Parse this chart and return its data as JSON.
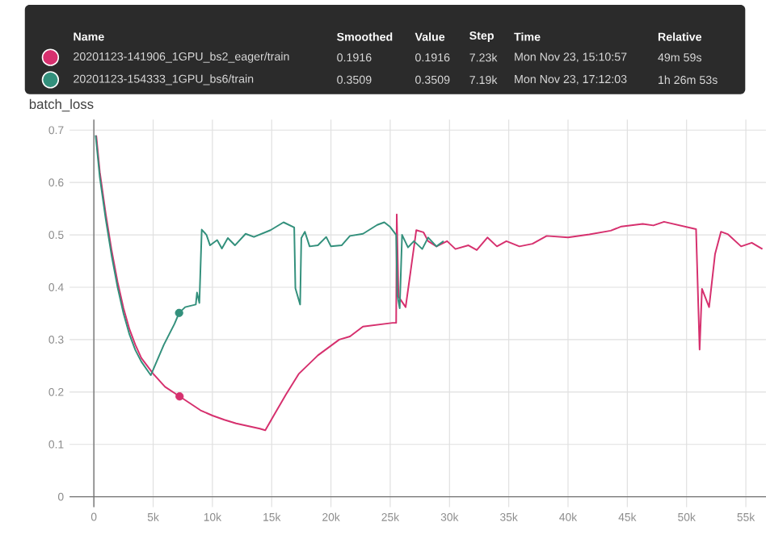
{
  "chart_data": {
    "type": "line",
    "title": "batch_loss",
    "legend": "top",
    "grid": true,
    "marker": "none",
    "xlim": [
      -2050,
      56700
    ],
    "ylim": [
      -0.02,
      0.72
    ],
    "xticks": [
      0,
      {
        "value": 5000,
        "label": "5k"
      },
      {
        "value": 10000,
        "label": "10k"
      },
      {
        "value": 15000,
        "label": "15k"
      },
      {
        "value": 20000,
        "label": "20k"
      },
      {
        "value": 25000,
        "label": "25k"
      },
      {
        "value": 30000,
        "label": "30k"
      },
      {
        "value": 35000,
        "label": "35k"
      },
      {
        "value": 40000,
        "label": "40k"
      },
      {
        "value": 45000,
        "label": "45k"
      },
      {
        "value": 50000,
        "label": "50k"
      },
      {
        "value": 55000,
        "label": "55k"
      }
    ],
    "yticks": [
      0,
      0.1,
      0.2,
      0.3,
      0.4,
      0.5,
      0.6,
      0.7
    ],
    "annotations": [
      "Name",
      "Smoothed",
      "Value",
      "Step",
      "Time",
      "Relative",
      "0.1916",
      "0.1916",
      "7.23k",
      "Mon Nov 23, 15:10:57",
      "49m 59s",
      "0.3509",
      "0.3509",
      "7.19k",
      "Mon Nov 23, 17:12:03",
      "1h 26m 53s"
    ],
    "series": [
      {
        "name": "20201123-141906_1GPU_bs2_eager/train",
        "color": "#d6306e",
        "x": [
          200,
          500,
          1000,
          1500,
          2000,
          2500,
          3000,
          3500,
          4000,
          5000,
          6000,
          7230,
          8000,
          9000,
          10000,
          11000,
          12000,
          13000,
          14000,
          14460,
          15300,
          16200,
          17300,
          18900,
          20700,
          21600,
          22700,
          25200,
          25500,
          25550,
          25700,
          26300,
          27200,
          27800,
          28200,
          28900,
          29800,
          30500,
          31600,
          32300,
          33200,
          34000,
          34800,
          35900,
          37000,
          38200,
          40000,
          41800,
          43600,
          44500,
          46300,
          47200,
          48100,
          50800,
          51100,
          51300,
          51900,
          52400,
          52900,
          53500,
          54600,
          55500,
          56400
        ],
        "values": [
          0.69,
          0.62,
          0.54,
          0.47,
          0.41,
          0.36,
          0.32,
          0.29,
          0.265,
          0.235,
          0.21,
          0.1916,
          0.18,
          0.165,
          0.155,
          0.147,
          0.14,
          0.135,
          0.13,
          0.127,
          0.16,
          0.195,
          0.235,
          0.27,
          0.3,
          0.306,
          0.325,
          0.332,
          0.332,
          0.539,
          0.382,
          0.362,
          0.509,
          0.505,
          0.488,
          0.478,
          0.488,
          0.473,
          0.48,
          0.471,
          0.495,
          0.478,
          0.488,
          0.478,
          0.483,
          0.498,
          0.495,
          0.501,
          0.508,
          0.516,
          0.521,
          0.518,
          0.525,
          0.511,
          0.281,
          0.397,
          0.362,
          0.463,
          0.506,
          0.501,
          0.478,
          0.485,
          0.473
        ]
      },
      {
        "name": "20201123-154333_1GPU_bs6/train",
        "color": "#33907c",
        "x": [
          150,
          500,
          1000,
          1500,
          2000,
          2500,
          3000,
          3500,
          4000,
          4800,
          5900,
          6800,
          7190,
          7700,
          8600,
          8700,
          8900,
          9100,
          9500,
          9800,
          10400,
          10800,
          11300,
          11900,
          12800,
          13500,
          14900,
          16000,
          16900,
          17000,
          17400,
          17500,
          17800,
          18200,
          18900,
          19600,
          20000,
          20900,
          21600,
          22700,
          23900,
          24500,
          25000,
          25500,
          25600,
          25800,
          26000,
          26500,
          27000,
          27700,
          28200,
          28900,
          29500
        ],
        "values": [
          0.69,
          0.61,
          0.53,
          0.46,
          0.4,
          0.35,
          0.31,
          0.28,
          0.258,
          0.232,
          0.29,
          0.33,
          0.3509,
          0.362,
          0.367,
          0.39,
          0.37,
          0.51,
          0.5,
          0.48,
          0.49,
          0.474,
          0.494,
          0.48,
          0.502,
          0.496,
          0.509,
          0.524,
          0.514,
          0.398,
          0.367,
          0.494,
          0.506,
          0.478,
          0.48,
          0.496,
          0.478,
          0.48,
          0.498,
          0.502,
          0.519,
          0.524,
          0.515,
          0.5,
          0.385,
          0.36,
          0.5,
          0.476,
          0.488,
          0.473,
          0.495,
          0.478,
          0.488
        ]
      },
      {
        "type": "scatter",
        "marker": "circle",
        "color": "#d6306e",
        "x": [
          7230
        ],
        "values": [
          0.1916
        ]
      },
      {
        "type": "scatter",
        "marker": "circle",
        "color": "#33907c",
        "x": [
          7190
        ],
        "values": [
          0.3509
        ]
      }
    ]
  }
}
